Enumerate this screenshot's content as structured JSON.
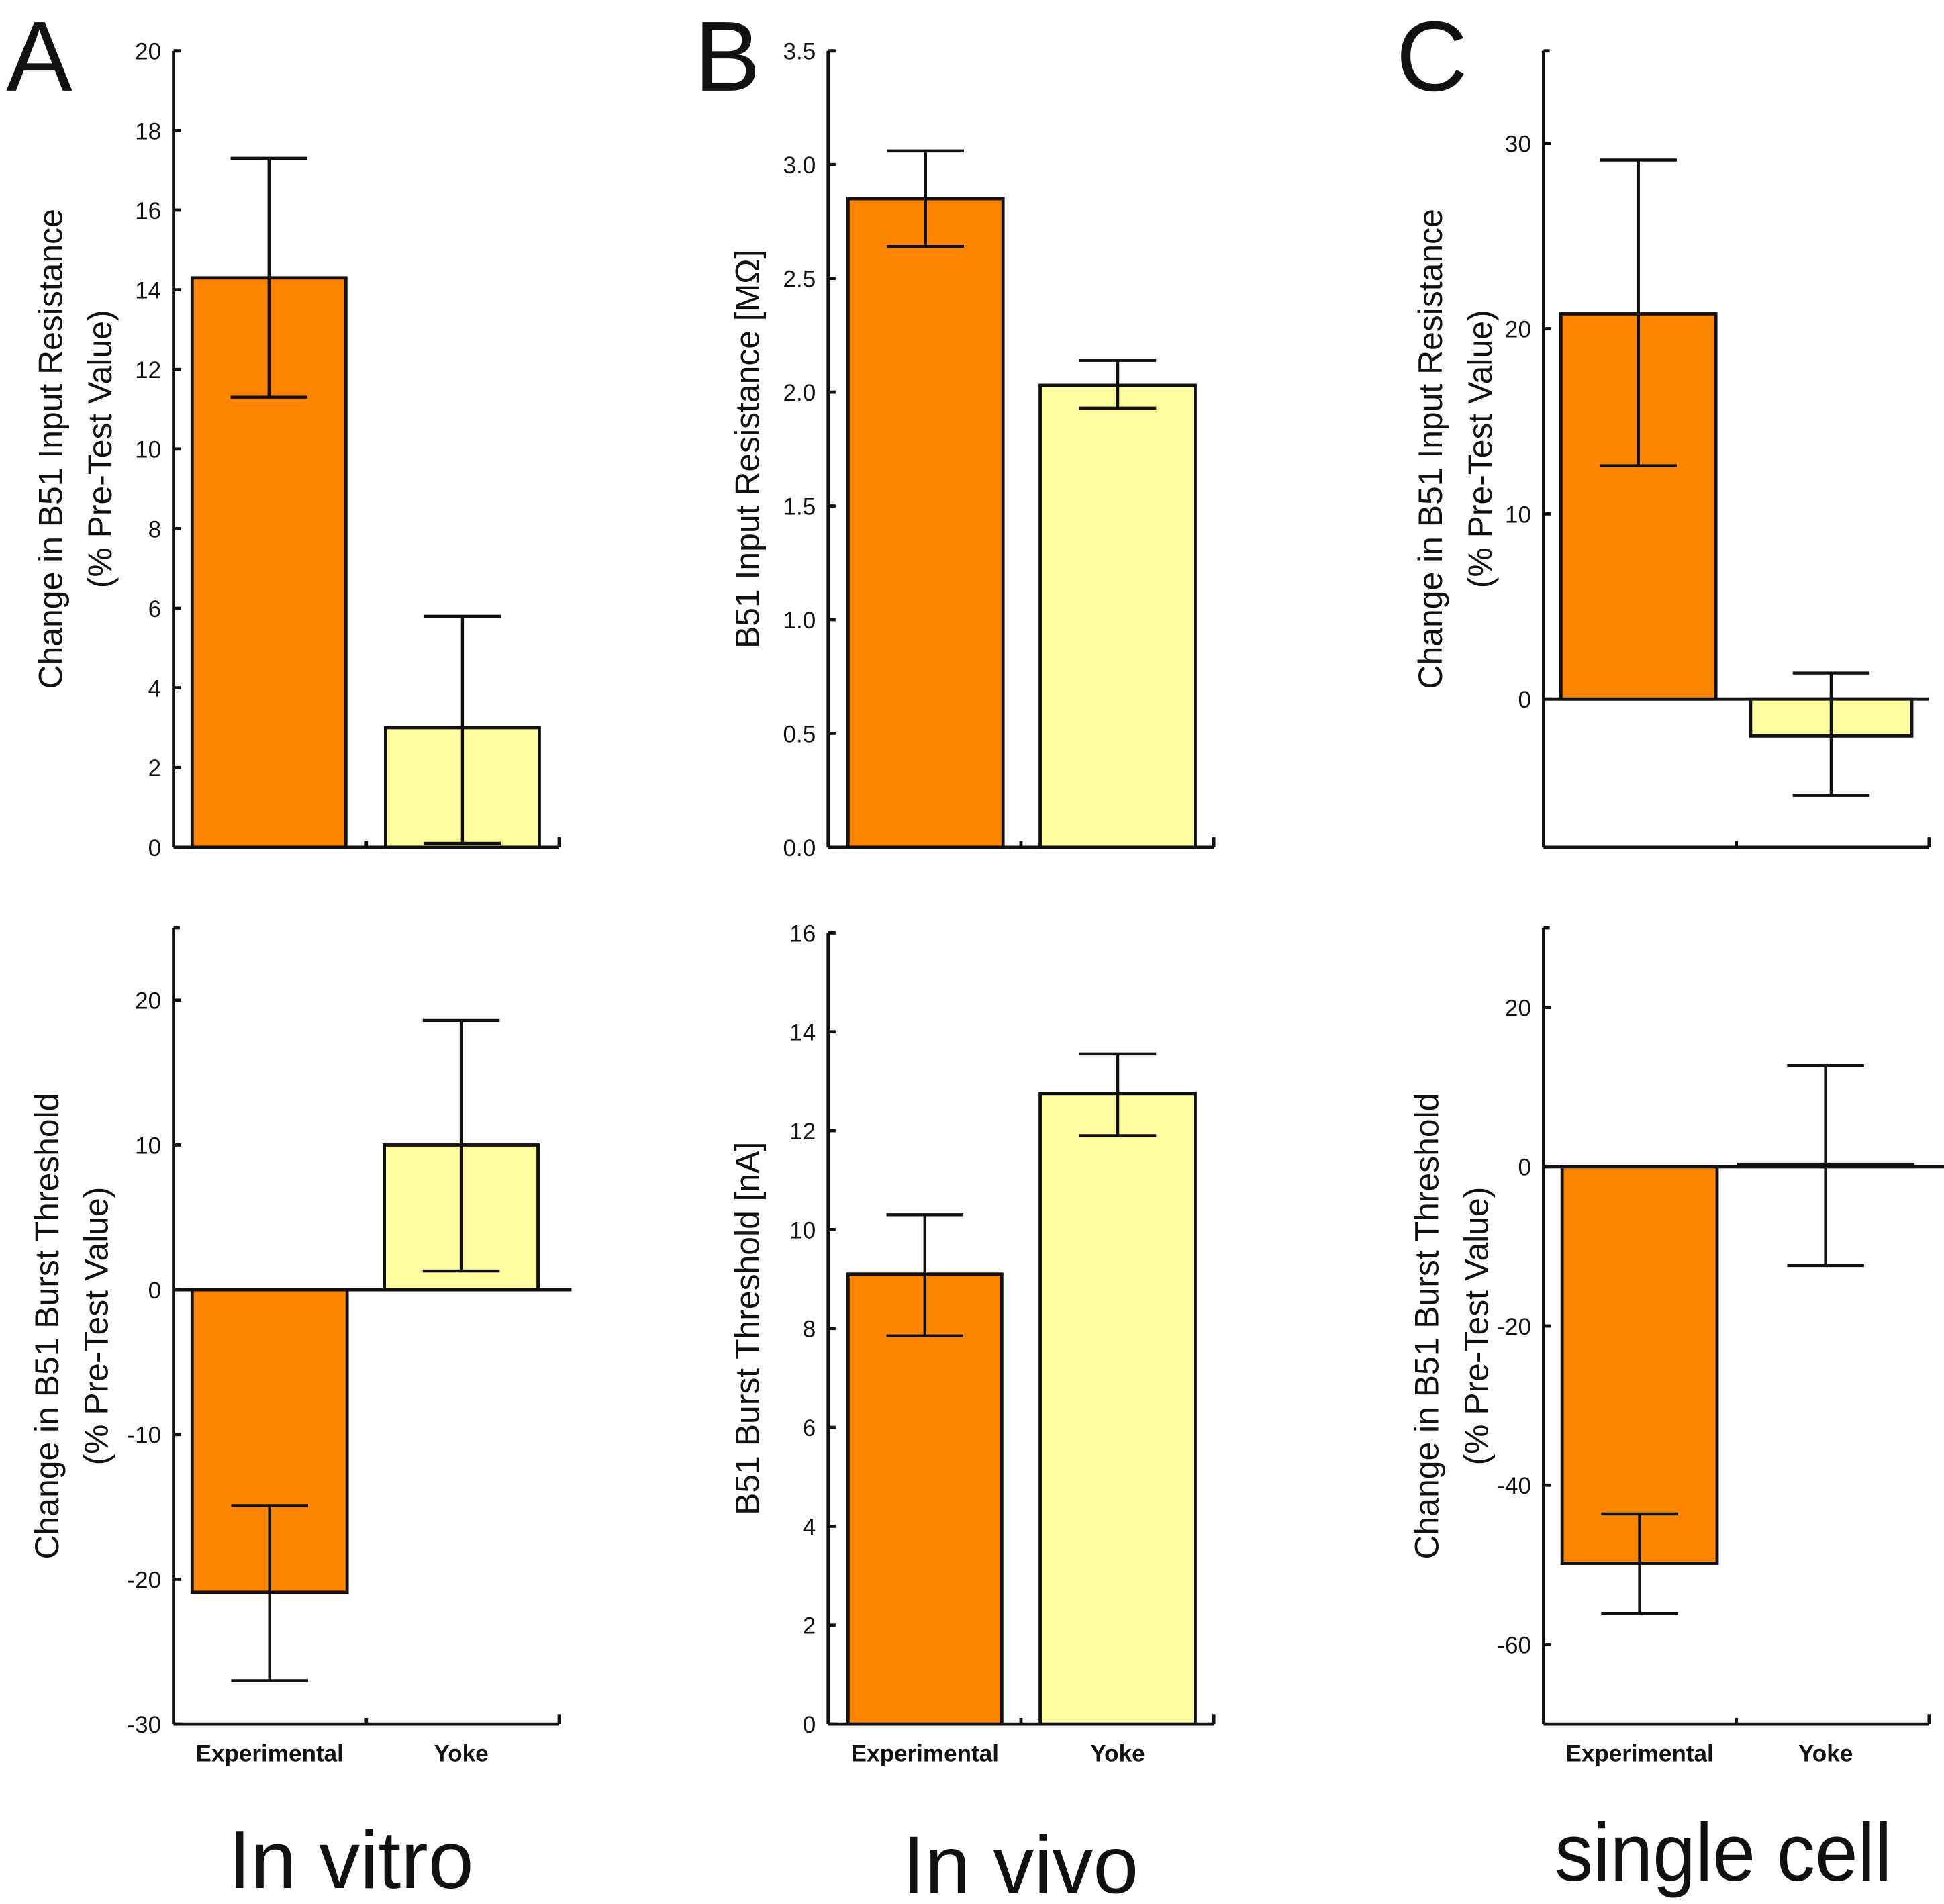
{
  "figure": {
    "panel_letters": [
      "A",
      "B",
      "C"
    ],
    "section_labels": [
      "In vitro",
      "In vivo",
      "single cell"
    ],
    "colors": {
      "experimental": "#ff8400",
      "yoke": "#ffffa0",
      "stroke": "#111111"
    }
  },
  "chart_data": [
    {
      "id": "A-top",
      "type": "bar",
      "panel": "A",
      "section": "In vitro",
      "title": "",
      "categories": [
        "Experimental",
        "Yoke"
      ],
      "show_category_labels": false,
      "values": [
        14.3,
        3.0
      ],
      "error_upper": [
        17.3,
        5.8
      ],
      "error_lower": [
        11.3,
        0.1
      ],
      "ylabel": [
        "Change in B51 Input Resistance",
        "(% Pre-Test Value)"
      ],
      "ylim": [
        0,
        20
      ],
      "yticks": [
        0,
        2,
        4,
        6,
        8,
        10,
        12,
        14,
        16,
        18,
        20
      ],
      "ytick_labels": [
        "0",
        "2",
        "4",
        "6",
        "8",
        "10",
        "12",
        "14",
        "16",
        "18",
        "20"
      ],
      "zero_line": false,
      "grid": false
    },
    {
      "id": "A-bottom",
      "type": "bar",
      "panel": "A",
      "section": "In vitro",
      "title": "",
      "categories": [
        "Experimental",
        "Yoke"
      ],
      "show_category_labels": true,
      "values": [
        -20.9,
        10.0
      ],
      "error_upper": [
        -14.9,
        18.6
      ],
      "error_lower": [
        -27.0,
        1.3
      ],
      "ylabel": [
        "Change in B51 Burst Threshold",
        "(% Pre-Test Value)"
      ],
      "ylim": [
        -30,
        25
      ],
      "yticks": [
        -30,
        -20,
        -10,
        0,
        10,
        20
      ],
      "ytick_labels": [
        "-30",
        "-20",
        "-10",
        "0",
        "10",
        "20"
      ],
      "zero_line": true,
      "grid": false
    },
    {
      "id": "B-top",
      "type": "bar",
      "panel": "B",
      "section": "In vivo",
      "title": "",
      "categories": [
        "Experimental",
        "Yoke"
      ],
      "show_category_labels": false,
      "values": [
        2.85,
        2.03
      ],
      "error_upper": [
        3.06,
        2.14
      ],
      "error_lower": [
        2.64,
        1.93
      ],
      "ylabel": [
        "B51 Input Resistance [MΩ]"
      ],
      "ylim": [
        0,
        3.5
      ],
      "yticks": [
        0,
        0.5,
        1.0,
        1.5,
        2.0,
        2.5,
        3.0,
        3.5
      ],
      "ytick_labels": [
        "0.0",
        "0.5",
        "1.0",
        "1.5",
        "2.0",
        "2.5",
        "3.0",
        "3.5"
      ],
      "zero_line": false,
      "grid": false
    },
    {
      "id": "B-bottom",
      "type": "bar",
      "panel": "B",
      "section": "In vivo",
      "title": "",
      "categories": [
        "Experimental",
        "Yoke"
      ],
      "show_category_labels": true,
      "values": [
        9.1,
        12.75
      ],
      "error_upper": [
        10.3,
        13.55
      ],
      "error_lower": [
        7.85,
        11.9
      ],
      "ylabel": [
        "B51 Burst Threshold [nA]"
      ],
      "ylim": [
        0,
        16
      ],
      "yticks": [
        0,
        2,
        4,
        6,
        8,
        10,
        12,
        14,
        16
      ],
      "ytick_labels": [
        "0",
        "2",
        "4",
        "6",
        "8",
        "10",
        "12",
        "14",
        "16"
      ],
      "zero_line": false,
      "grid": false
    },
    {
      "id": "C-top",
      "type": "bar",
      "panel": "C",
      "section": "single cell",
      "title": "",
      "categories": [
        "Experimental",
        "Yoke"
      ],
      "show_category_labels": false,
      "values": [
        20.8,
        -2.0
      ],
      "error_upper": [
        29.1,
        1.4
      ],
      "error_lower": [
        12.6,
        -5.2
      ],
      "ylabel": [
        "Change in B51 Input Resistance",
        "(% Pre-Test Value)"
      ],
      "ylim": [
        -8,
        35
      ],
      "yticks": [
        0,
        10,
        20,
        30
      ],
      "ytick_labels": [
        "0",
        "10",
        "20",
        "30"
      ],
      "zero_line": true,
      "grid": false
    },
    {
      "id": "C-bottom",
      "type": "bar",
      "panel": "C",
      "section": "single cell",
      "title": "",
      "categories": [
        "Experimental",
        "Yoke"
      ],
      "show_category_labels": true,
      "values": [
        -49.8,
        0.3
      ],
      "error_upper": [
        -43.6,
        12.7
      ],
      "error_lower": [
        -56.1,
        -12.4
      ],
      "ylabel": [
        "Change in B51 Burst Threshold",
        "(% Pre-Test Value)"
      ],
      "ylim": [
        -70,
        30
      ],
      "yticks": [
        -60,
        -40,
        -20,
        0,
        20
      ],
      "ytick_labels": [
        "-60",
        "-40",
        "-20",
        "0",
        "20"
      ],
      "zero_line": true,
      "grid": false
    }
  ]
}
